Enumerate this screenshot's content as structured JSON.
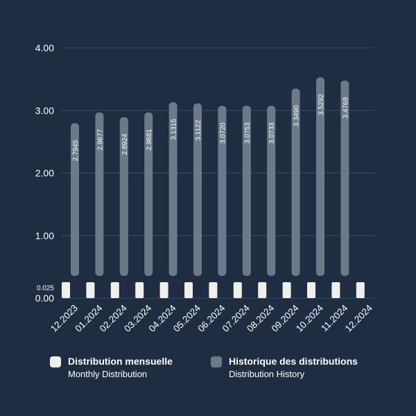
{
  "chart_data": {
    "type": "bar",
    "categories": [
      "12.2023",
      "01.2024",
      "02.2024",
      "03.2024",
      "04.2024",
      "05.2024",
      "06.2024",
      "07.2024",
      "08.2024",
      "09.2024",
      "10.2024",
      "11.2024",
      "12.2024"
    ],
    "series": [
      {
        "name": "Distribution mensuelle",
        "subtitle": "Monthly Distribution",
        "values": [
          0.025,
          0.025,
          0.025,
          0.025,
          0.025,
          0.025,
          0.025,
          0.025,
          0.025,
          0.025,
          0.025,
          0.025,
          0.025
        ],
        "color": "#f1efea"
      },
      {
        "name": "Historique des distributions",
        "subtitle": "Distribution History",
        "values": [
          2.7945,
          2.9677,
          2.8924,
          2.9681,
          3.1315,
          3.1122,
          3.072,
          3.0753,
          3.0733,
          3.349,
          3.5292,
          3.4769,
          null
        ],
        "value_labels": [
          "2.7945",
          "2.9677",
          "2.8924",
          "2.9681",
          "3.1315",
          "3.1122",
          "3.0720",
          "3.0753",
          "3.0733",
          "3.3490",
          "3.5292",
          "3.4769",
          ""
        ],
        "color": "#6b7a88"
      }
    ],
    "ylim": [
      0,
      4
    ],
    "y_ticks": [
      "0.00",
      "1.00",
      "2.00",
      "3.00",
      "4.00"
    ],
    "extra_y_label": "0.025",
    "extra_y_value": 0.025,
    "grid": true,
    "legend_position": "bottom",
    "title": "",
    "xlabel": "",
    "ylabel": ""
  },
  "colors": {
    "background": "#1f2d43",
    "grid": "#3e4c60",
    "axis_text": "#ffffff",
    "bar_label": "#ffffff"
  }
}
